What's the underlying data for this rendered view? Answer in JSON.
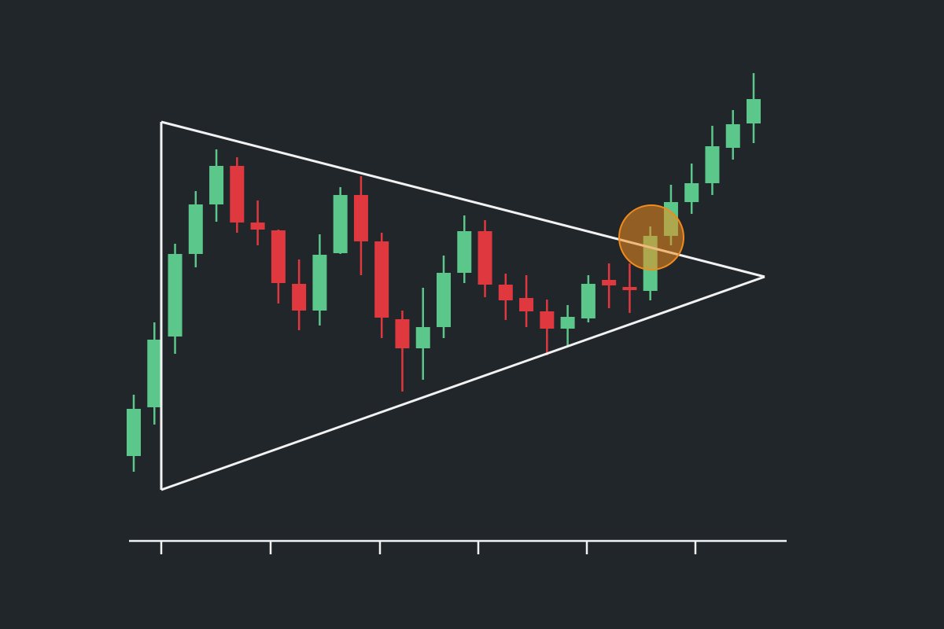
{
  "chart_data": {
    "type": "candlestick",
    "categories": [
      null,
      null,
      null,
      null,
      null,
      null,
      null,
      null,
      null,
      null,
      null,
      null,
      null,
      null,
      null,
      null,
      null,
      null,
      null,
      null,
      null,
      null,
      null,
      null,
      null,
      null,
      null,
      null,
      null,
      null,
      null
    ],
    "open": [
      27.5,
      35.25,
      46.5,
      59.625,
      67.5,
      73.625,
      64.625,
      63.375,
      54.875,
      50.625,
      59.75,
      69,
      61.625,
      49.25,
      44.625,
      48,
      56.625,
      63.25,
      54.75,
      52.625,
      50.5,
      47.75,
      49.375,
      55.5,
      54.375,
      53.75,
      62.5,
      67.875,
      70.875,
      76.5,
      80.375
    ],
    "high": [
      37.25,
      48.75,
      61.25,
      69.625,
      76.25,
      75,
      68.125,
      63.5,
      58.75,
      62.75,
      70.25,
      72,
      63,
      50.625,
      54.25,
      59.375,
      65.75,
      65,
      56.5,
      56.25,
      52.375,
      51.5,
      56.25,
      58.125,
      58.125,
      64,
      70.625,
      74,
      80,
      82.5,
      88.375
    ],
    "low": [
      25,
      32.5,
      43.75,
      57.5,
      64.75,
      63,
      61,
      51.75,
      47.5,
      48.25,
      59.625,
      56.25,
      46.25,
      37.75,
      39.625,
      46.25,
      55,
      52.75,
      49.125,
      48,
      43.5,
      45,
      48.75,
      51,
      50.25,
      52.25,
      61,
      66,
      69,
      74.625,
      77.25
    ],
    "close": [
      35,
      46,
      59.625,
      67.5,
      73.625,
      64.625,
      63.5,
      55,
      50.625,
      59.5,
      69,
      61.625,
      49.5,
      44.625,
      48,
      56.625,
      63.25,
      54.75,
      52.25,
      50.5,
      47.75,
      49.625,
      54.875,
      54.625,
      53.875,
      62.5,
      67.875,
      70.875,
      76.75,
      80.25,
      84.25
    ],
    "up_color": "#5cc78a",
    "down_color": "#e0383f",
    "ylim": [
      0,
      100
    ]
  }
}
